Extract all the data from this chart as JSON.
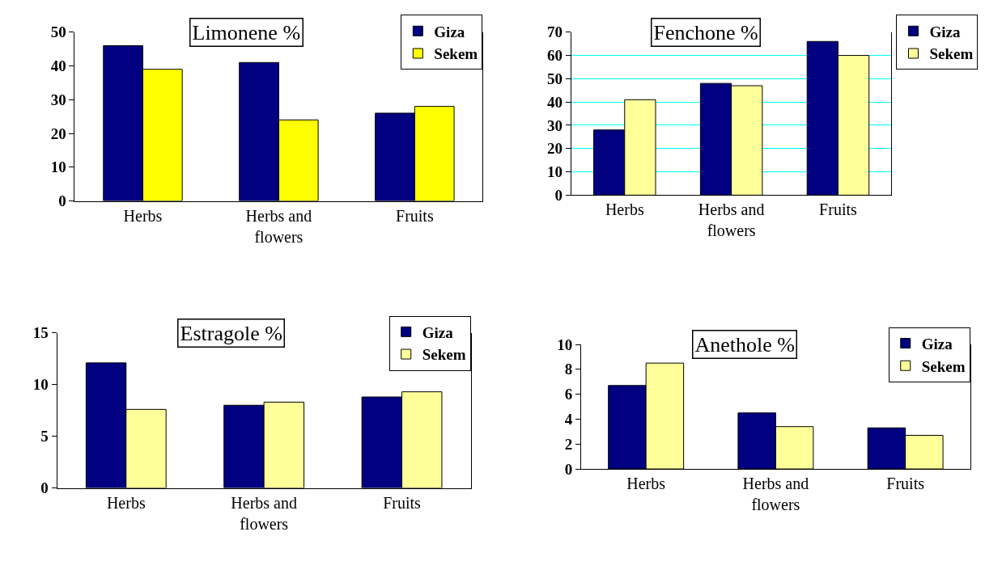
{
  "chart_data": [
    {
      "type": "bar",
      "title": "Limonene %",
      "categories": [
        "Herbs",
        "Herbs and flowers",
        "Fruits"
      ],
      "series": [
        {
          "name": "Giza",
          "color": "#000080",
          "values": [
            46,
            41,
            26
          ]
        },
        {
          "name": "Sekem",
          "color": "#ffff00",
          "values": [
            39,
            24,
            28
          ]
        }
      ],
      "ylim": [
        0,
        50
      ],
      "yticks": [
        0,
        10,
        20,
        30,
        40,
        50
      ],
      "legend": "top right"
    },
    {
      "type": "bar",
      "title": "Fenchone %",
      "categories": [
        "Herbs",
        "Herbs and flowers",
        "Fruits"
      ],
      "series": [
        {
          "name": "Giza",
          "color": "#000080",
          "values": [
            28,
            48,
            66
          ]
        },
        {
          "name": "Sekem",
          "color": "#ffff99",
          "values": [
            41,
            47,
            60
          ]
        }
      ],
      "ylim": [
        0,
        70
      ],
      "yticks": [
        0,
        10,
        20,
        30,
        40,
        50,
        60,
        70
      ],
      "grid": "y",
      "legend": "right"
    },
    {
      "type": "bar",
      "title": "Estragole %",
      "categories": [
        "Herbs",
        "Herbs and flowers",
        "Fruits"
      ],
      "series": [
        {
          "name": "Giza",
          "color": "#000080",
          "values": [
            12.1,
            8,
            8.8
          ]
        },
        {
          "name": "Sekem",
          "color": "#ffff99",
          "values": [
            7.6,
            8.3,
            9.3
          ]
        }
      ],
      "ylim": [
        0,
        15
      ],
      "yticks": [
        0,
        5,
        10,
        15
      ],
      "legend": "top right"
    },
    {
      "type": "bar",
      "title": "Anethole %",
      "categories": [
        "Herbs",
        "Herbs and flowers",
        "Fruits"
      ],
      "series": [
        {
          "name": "Giza",
          "color": "#000080",
          "values": [
            6.7,
            4.5,
            3.3
          ]
        },
        {
          "name": "Sekem",
          "color": "#ffff99",
          "values": [
            8.5,
            3.4,
            2.7
          ]
        }
      ],
      "ylim": [
        0,
        10
      ],
      "yticks": [
        0,
        2,
        4,
        6,
        8,
        10
      ],
      "legend": "top right"
    }
  ]
}
